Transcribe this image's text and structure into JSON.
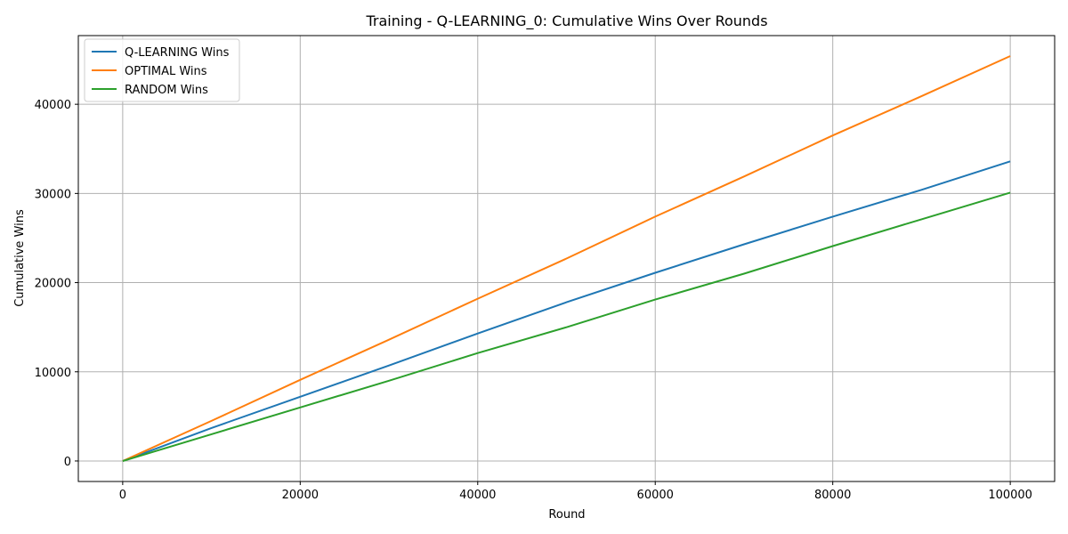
{
  "chart_data": {
    "type": "line",
    "title": "Training - Q-LEARNING_0: Cumulative Wins Over Rounds",
    "xlabel": "Round",
    "ylabel": "Cumulative Wins",
    "xlim": [
      -5000,
      105000
    ],
    "ylim": [
      -2300,
      47700
    ],
    "xticks": [
      0,
      20000,
      40000,
      60000,
      80000,
      100000
    ],
    "xtick_labels": [
      "0",
      "20000",
      "40000",
      "60000",
      "80000",
      "100000"
    ],
    "yticks": [
      0,
      10000,
      20000,
      30000,
      40000
    ],
    "ytick_labels": [
      "0",
      "10000",
      "20000",
      "30000",
      "40000"
    ],
    "grid": true,
    "legend_position": "upper-left",
    "x": [
      0,
      10000,
      20000,
      30000,
      40000,
      50000,
      60000,
      70000,
      80000,
      90000,
      100000
    ],
    "series": [
      {
        "name": "Q-LEARNING Wins",
        "color": "#1f77b4",
        "values": [
          0,
          3700,
          7200,
          10700,
          14300,
          17800,
          21100,
          24300,
          27400,
          30400,
          33600
        ]
      },
      {
        "name": "OPTIMAL Wins",
        "color": "#ff7f0e",
        "values": [
          0,
          4500,
          9100,
          13600,
          18200,
          22700,
          27400,
          31900,
          36500,
          40900,
          45400
        ]
      },
      {
        "name": "RANDOM Wins",
        "color": "#2ca02c",
        "values": [
          0,
          3000,
          6000,
          9000,
          12100,
          15000,
          18100,
          21000,
          24100,
          27100,
          30100
        ]
      }
    ]
  }
}
